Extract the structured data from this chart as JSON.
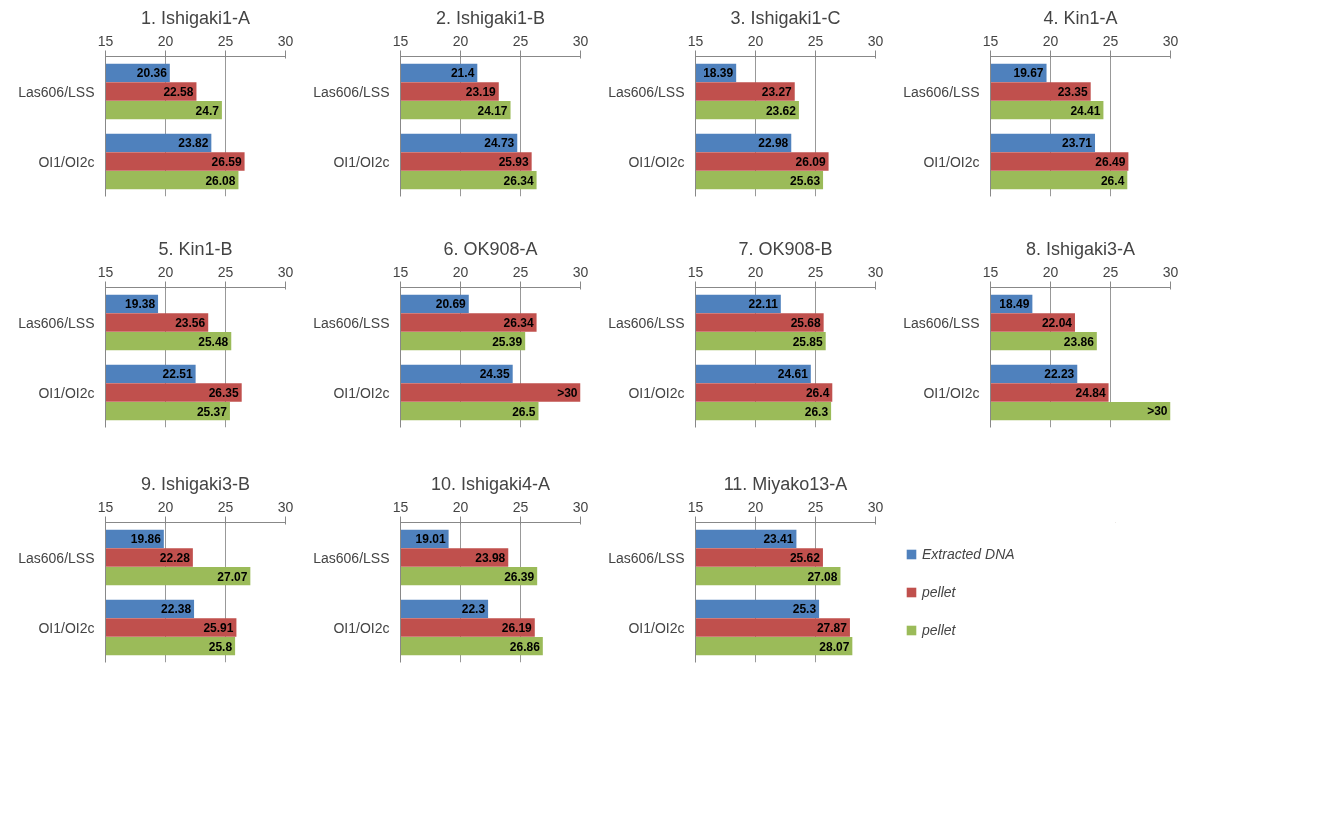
{
  "chart_data": [
    {
      "type": "bar",
      "orientation": "horizontal",
      "title": "1. Ishigaki1-A",
      "categories": [
        "Las606/LSS",
        "OI1/OI2c"
      ],
      "xlim": [
        15,
        30
      ],
      "xticks": [
        15,
        20,
        25,
        30
      ],
      "grid": "x",
      "legend": false,
      "series": [
        {
          "color": "#4f81bd",
          "values": [
            20.36,
            23.82
          ],
          "value_labels": [
            "20.36",
            "23.82"
          ]
        },
        {
          "color": "#c0504d",
          "values": [
            22.58,
            26.59
          ],
          "value_labels": [
            "22.58",
            "26.59"
          ]
        },
        {
          "color": "#9bbb59",
          "values": [
            24.7,
            26.08
          ],
          "value_labels": [
            "24.7",
            "26.08"
          ]
        }
      ]
    },
    {
      "type": "bar",
      "orientation": "horizontal",
      "title": "2. Ishigaki1-B",
      "categories": [
        "Las606/LSS",
        "OI1/OI2c"
      ],
      "xlim": [
        15,
        30
      ],
      "xticks": [
        15,
        20,
        25,
        30
      ],
      "grid": "x",
      "legend": false,
      "series": [
        {
          "color": "#4f81bd",
          "values": [
            21.4,
            24.73
          ],
          "value_labels": [
            "21.4",
            "24.73"
          ]
        },
        {
          "color": "#c0504d",
          "values": [
            23.19,
            25.93
          ],
          "value_labels": [
            "23.19",
            "25.93"
          ]
        },
        {
          "color": "#9bbb59",
          "values": [
            24.17,
            26.34
          ],
          "value_labels": [
            "24.17",
            "26.34"
          ]
        }
      ]
    },
    {
      "type": "bar",
      "orientation": "horizontal",
      "title": "3. Ishigaki1-C",
      "categories": [
        "Las606/LSS",
        "OI1/OI2c"
      ],
      "xlim": [
        15,
        30
      ],
      "xticks": [
        15,
        20,
        25,
        30
      ],
      "grid": "x",
      "legend": false,
      "series": [
        {
          "color": "#4f81bd",
          "values": [
            18.39,
            22.98
          ],
          "value_labels": [
            "18.39",
            "22.98"
          ]
        },
        {
          "color": "#c0504d",
          "values": [
            23.27,
            26.09
          ],
          "value_labels": [
            "23.27",
            "26.09"
          ]
        },
        {
          "color": "#9bbb59",
          "values": [
            23.62,
            25.63
          ],
          "value_labels": [
            "23.62",
            "25.63"
          ]
        }
      ]
    },
    {
      "type": "bar",
      "orientation": "horizontal",
      "title": "4. Kin1-A",
      "categories": [
        "Las606/LSS",
        "OI1/OI2c"
      ],
      "xlim": [
        15,
        30
      ],
      "xticks": [
        15,
        20,
        25,
        30
      ],
      "grid": "x",
      "legend": false,
      "series": [
        {
          "color": "#4f81bd",
          "values": [
            19.67,
            23.71
          ],
          "value_labels": [
            "19.67",
            "23.71"
          ]
        },
        {
          "color": "#c0504d",
          "values": [
            23.35,
            26.49
          ],
          "value_labels": [
            "23.35",
            "26.49"
          ]
        },
        {
          "color": "#9bbb59",
          "values": [
            24.41,
            26.4
          ],
          "value_labels": [
            "24.41",
            "26.4"
          ]
        }
      ]
    },
    {
      "type": "bar",
      "orientation": "horizontal",
      "title": "5. Kin1-B",
      "categories": [
        "Las606/LSS",
        "OI1/OI2c"
      ],
      "xlim": [
        15,
        30
      ],
      "xticks": [
        15,
        20,
        25,
        30
      ],
      "grid": "x",
      "legend": false,
      "series": [
        {
          "color": "#4f81bd",
          "values": [
            19.38,
            22.51
          ],
          "value_labels": [
            "19.38",
            "22.51"
          ]
        },
        {
          "color": "#c0504d",
          "values": [
            23.56,
            26.35
          ],
          "value_labels": [
            "23.56",
            "26.35"
          ]
        },
        {
          "color": "#9bbb59",
          "values": [
            25.48,
            25.37
          ],
          "value_labels": [
            "25.48",
            "25.37"
          ]
        }
      ]
    },
    {
      "type": "bar",
      "orientation": "horizontal",
      "title": "6. OK908-A",
      "categories": [
        "Las606/LSS",
        "OI1/OI2c"
      ],
      "xlim": [
        15,
        30
      ],
      "xticks": [
        15,
        20,
        25,
        30
      ],
      "grid": "x",
      "legend": false,
      "series": [
        {
          "color": "#4f81bd",
          "values": [
            20.69,
            24.35
          ],
          "value_labels": [
            "20.69",
            "24.35"
          ]
        },
        {
          "color": "#c0504d",
          "values": [
            26.34,
            30
          ],
          "value_labels": [
            "26.34",
            ">30"
          ]
        },
        {
          "color": "#9bbb59",
          "values": [
            25.39,
            26.5
          ],
          "value_labels": [
            "25.39",
            "26.5"
          ]
        }
      ]
    },
    {
      "type": "bar",
      "orientation": "horizontal",
      "title": "7. OK908-B",
      "categories": [
        "Las606/LSS",
        "OI1/OI2c"
      ],
      "xlim": [
        15,
        30
      ],
      "xticks": [
        15,
        20,
        25,
        30
      ],
      "grid": "x",
      "legend": false,
      "series": [
        {
          "color": "#4f81bd",
          "values": [
            22.11,
            24.61
          ],
          "value_labels": [
            "22.11",
            "24.61"
          ]
        },
        {
          "color": "#c0504d",
          "values": [
            25.68,
            26.4
          ],
          "value_labels": [
            "25.68",
            "26.4"
          ]
        },
        {
          "color": "#9bbb59",
          "values": [
            25.85,
            26.3
          ],
          "value_labels": [
            "25.85",
            "26.3"
          ]
        }
      ]
    },
    {
      "type": "bar",
      "orientation": "horizontal",
      "title": "8. Ishigaki3-A",
      "categories": [
        "Las606/LSS",
        "OI1/OI2c"
      ],
      "xlim": [
        15,
        30
      ],
      "xticks": [
        15,
        20,
        25,
        30
      ],
      "grid": "x",
      "legend": false,
      "series": [
        {
          "color": "#4f81bd",
          "values": [
            18.49,
            22.23
          ],
          "value_labels": [
            "18.49",
            "22.23"
          ]
        },
        {
          "color": "#c0504d",
          "values": [
            22.04,
            24.84
          ],
          "value_labels": [
            "22.04",
            "24.84"
          ]
        },
        {
          "color": "#9bbb59",
          "values": [
            23.86,
            30
          ],
          "value_labels": [
            "23.86",
            ">30"
          ]
        }
      ]
    },
    {
      "type": "bar",
      "orientation": "horizontal",
      "title": "9. Ishigaki3-B",
      "categories": [
        "Las606/LSS",
        "OI1/OI2c"
      ],
      "xlim": [
        15,
        30
      ],
      "xticks": [
        15,
        20,
        25,
        30
      ],
      "grid": "x",
      "legend": false,
      "series": [
        {
          "color": "#4f81bd",
          "values": [
            19.86,
            22.38
          ],
          "value_labels": [
            "19.86",
            "22.38"
          ]
        },
        {
          "color": "#c0504d",
          "values": [
            22.28,
            25.91
          ],
          "value_labels": [
            "22.28",
            "25.91"
          ]
        },
        {
          "color": "#9bbb59",
          "values": [
            27.07,
            25.8
          ],
          "value_labels": [
            "27.07",
            "25.8"
          ]
        }
      ]
    },
    {
      "type": "bar",
      "orientation": "horizontal",
      "title": "10. Ishigaki4-A",
      "categories": [
        "Las606/LSS",
        "OI1/OI2c"
      ],
      "xlim": [
        15,
        30
      ],
      "xticks": [
        15,
        20,
        25,
        30
      ],
      "grid": "x",
      "legend": false,
      "series": [
        {
          "color": "#4f81bd",
          "values": [
            19.01,
            22.3
          ],
          "value_labels": [
            "19.01",
            "22.3"
          ]
        },
        {
          "color": "#c0504d",
          "values": [
            23.98,
            26.19
          ],
          "value_labels": [
            "23.98",
            "26.19"
          ]
        },
        {
          "color": "#9bbb59",
          "values": [
            26.39,
            26.86
          ],
          "value_labels": [
            "26.39",
            "26.86"
          ]
        }
      ]
    },
    {
      "type": "bar",
      "orientation": "horizontal",
      "title": "11. Miyako13-A",
      "categories": [
        "Las606/LSS",
        "OI1/OI2c"
      ],
      "xlim": [
        15,
        30
      ],
      "xticks": [
        15,
        20,
        25,
        30
      ],
      "grid": "x",
      "legend": "right",
      "series": [
        {
          "name": "Extracted DNA",
          "color": "#4f81bd",
          "values": [
            23.41,
            25.3
          ],
          "value_labels": [
            "23.41",
            "25.3"
          ]
        },
        {
          "name": "pellet",
          "color": "#c0504d",
          "values": [
            25.62,
            27.87
          ],
          "value_labels": [
            "25.62",
            "27.87"
          ]
        },
        {
          "name": "pellet",
          "color": "#9bbb59",
          "values": [
            27.08,
            28.07
          ],
          "value_labels": [
            "27.08",
            "28.07"
          ]
        }
      ]
    }
  ]
}
